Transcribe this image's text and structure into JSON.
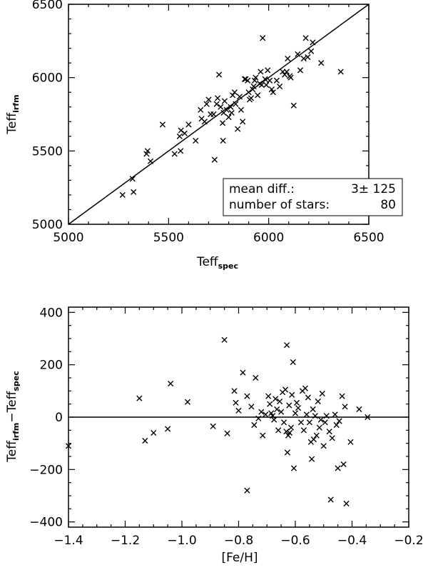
{
  "chart_data": [
    {
      "type": "scatter",
      "xlabel": {
        "main": "Teff",
        "sub": "spec"
      },
      "ylabel": {
        "main": "Teff",
        "sub": "irfm"
      },
      "xlim": [
        5000,
        6500
      ],
      "ylim": [
        5000,
        6500
      ],
      "xticks": [
        "5000",
        "5500",
        "6000",
        "6500"
      ],
      "yticks": [
        "5000",
        "5500",
        "6000",
        "6500"
      ],
      "reference_line": "one-to-one",
      "legend": {
        "position": "bottom-right",
        "lines": [
          {
            "label": "mean diff.:",
            "value": "3± 125"
          },
          {
            "label": "number of stars:",
            "value": "80"
          }
        ]
      },
      "marker": "x",
      "points": [
        [
          5270,
          5200
        ],
        [
          5320,
          5310
        ],
        [
          5325,
          5220
        ],
        [
          5390,
          5480
        ],
        [
          5395,
          5500
        ],
        [
          5410,
          5430
        ],
        [
          5470,
          5680
        ],
        [
          5530,
          5480
        ],
        [
          5555,
          5600
        ],
        [
          5560,
          5500
        ],
        [
          5562,
          5640
        ],
        [
          5580,
          5620
        ],
        [
          5600,
          5680
        ],
        [
          5635,
          5570
        ],
        [
          5660,
          5780
        ],
        [
          5665,
          5720
        ],
        [
          5680,
          5700
        ],
        [
          5690,
          5820
        ],
        [
          5700,
          5850
        ],
        [
          5710,
          5750
        ],
        [
          5725,
          5750
        ],
        [
          5730,
          5440
        ],
        [
          5740,
          5820
        ],
        [
          5745,
          5860
        ],
        [
          5752,
          6020
        ],
        [
          5760,
          5800
        ],
        [
          5770,
          5690
        ],
        [
          5772,
          5570
        ],
        [
          5775,
          5760
        ],
        [
          5780,
          5840
        ],
        [
          5790,
          5780
        ],
        [
          5800,
          5730
        ],
        [
          5810,
          5800
        ],
        [
          5815,
          5760
        ],
        [
          5820,
          5880
        ],
        [
          5830,
          5900
        ],
        [
          5835,
          5820
        ],
        [
          5845,
          5650
        ],
        [
          5855,
          5870
        ],
        [
          5862,
          5780
        ],
        [
          5870,
          5700
        ],
        [
          5880,
          5990
        ],
        [
          5885,
          5990
        ],
        [
          5895,
          5980
        ],
        [
          5900,
          5900
        ],
        [
          5905,
          5850
        ],
        [
          5912,
          5860
        ],
        [
          5920,
          5920
        ],
        [
          5925,
          5940
        ],
        [
          5930,
          5980
        ],
        [
          5935,
          6000
        ],
        [
          5945,
          5880
        ],
        [
          5955,
          5960
        ],
        [
          5960,
          6040
        ],
        [
          5965,
          5950
        ],
        [
          5970,
          6270
        ],
        [
          5982,
          5990
        ],
        [
          5988,
          5950
        ],
        [
          5995,
          6050
        ],
        [
          6005,
          5980
        ],
        [
          6015,
          5920
        ],
        [
          6022,
          5900
        ],
        [
          6040,
          5980
        ],
        [
          6055,
          5940
        ],
        [
          6070,
          6040
        ],
        [
          6080,
          6020
        ],
        [
          6090,
          6040
        ],
        [
          6095,
          6130
        ],
        [
          6105,
          6010
        ],
        [
          6110,
          6000
        ],
        [
          6125,
          5810
        ],
        [
          6145,
          6160
        ],
        [
          6158,
          6050
        ],
        [
          6175,
          6130
        ],
        [
          6185,
          6270
        ],
        [
          6195,
          6140
        ],
        [
          6212,
          6180
        ],
        [
          6220,
          6240
        ],
        [
          6262,
          6100
        ],
        [
          6360,
          6040
        ]
      ]
    },
    {
      "type": "scatter",
      "xlabel": "[Fe/H]",
      "ylabel": {
        "main1": "Teff",
        "sub1": "irfm",
        "sep": "−",
        "main2": "Teff",
        "sub2": "spec"
      },
      "xlim": [
        -1.4,
        -0.2
      ],
      "ylim": [
        -420,
        420
      ],
      "xticks": [
        "−1.4",
        "−1.2",
        "−1.0",
        "−0.8",
        "−0.6",
        "−0.4",
        "−0.2"
      ],
      "yticks": [
        "−400",
        "−200",
        "0",
        "200",
        "400"
      ],
      "reference_line": "y=0",
      "marker": "x",
      "points": [
        [
          -1.4,
          -110
        ],
        [
          -1.15,
          72
        ],
        [
          -1.13,
          -90
        ],
        [
          -1.1,
          -60
        ],
        [
          -1.05,
          -45
        ],
        [
          -1.04,
          128
        ],
        [
          -0.98,
          58
        ],
        [
          -0.89,
          -35
        ],
        [
          -0.85,
          295
        ],
        [
          -0.84,
          -62
        ],
        [
          -0.815,
          100
        ],
        [
          -0.81,
          55
        ],
        [
          -0.8,
          25
        ],
        [
          -0.785,
          170
        ],
        [
          -0.77,
          80
        ],
        [
          -0.77,
          -280
        ],
        [
          -0.755,
          40
        ],
        [
          -0.745,
          -30
        ],
        [
          -0.74,
          150
        ],
        [
          -0.73,
          -5
        ],
        [
          -0.72,
          20
        ],
        [
          -0.715,
          -70
        ],
        [
          -0.705,
          10
        ],
        [
          -0.695,
          80
        ],
        [
          -0.69,
          50
        ],
        [
          -0.685,
          15
        ],
        [
          -0.68,
          5
        ],
        [
          -0.675,
          -10
        ],
        [
          -0.67,
          70
        ],
        [
          -0.665,
          30
        ],
        [
          -0.66,
          -50
        ],
        [
          -0.655,
          60
        ],
        [
          -0.65,
          20
        ],
        [
          -0.645,
          95
        ],
        [
          -0.64,
          -20
        ],
        [
          -0.635,
          105
        ],
        [
          -0.632,
          -55
        ],
        [
          -0.63,
          275
        ],
        [
          -0.628,
          -135
        ],
        [
          -0.625,
          -70
        ],
        [
          -0.622,
          45
        ],
        [
          -0.62,
          -60
        ],
        [
          -0.615,
          -40
        ],
        [
          -0.612,
          85
        ],
        [
          -0.608,
          210
        ],
        [
          -0.605,
          -195
        ],
        [
          -0.6,
          15
        ],
        [
          -0.595,
          55
        ],
        [
          -0.59,
          35
        ],
        [
          -0.58,
          -20
        ],
        [
          -0.575,
          100
        ],
        [
          -0.57,
          -50
        ],
        [
          -0.565,
          110
        ],
        [
          -0.56,
          10
        ],
        [
          -0.555,
          75
        ],
        [
          -0.55,
          -20
        ],
        [
          -0.545,
          -95
        ],
        [
          -0.542,
          -160
        ],
        [
          -0.538,
          30
        ],
        [
          -0.535,
          -85
        ],
        [
          -0.53,
          5
        ],
        [
          -0.525,
          -70
        ],
        [
          -0.52,
          60
        ],
        [
          -0.515,
          -40
        ],
        [
          -0.51,
          -10
        ],
        [
          -0.505,
          90
        ],
        [
          -0.5,
          -110
        ],
        [
          -0.495,
          -20
        ],
        [
          -0.49,
          5
        ],
        [
          -0.48,
          -55
        ],
        [
          -0.475,
          -315
        ],
        [
          -0.47,
          -80
        ],
        [
          -0.46,
          10
        ],
        [
          -0.455,
          -30
        ],
        [
          -0.45,
          -195
        ],
        [
          -0.445,
          -15
        ],
        [
          -0.435,
          80
        ],
        [
          -0.43,
          -180
        ],
        [
          -0.425,
          40
        ],
        [
          -0.42,
          -330
        ],
        [
          -0.405,
          -95
        ],
        [
          -0.375,
          30
        ],
        [
          -0.345,
          0
        ]
      ]
    }
  ]
}
